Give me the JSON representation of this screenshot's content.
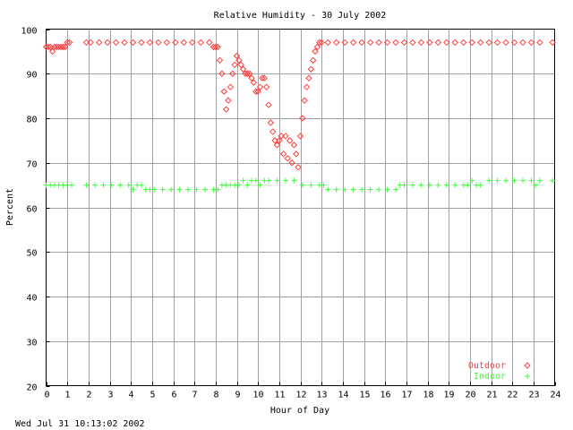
{
  "footer_timestamp": "Wed Jul 31 10:13:02 2002",
  "chart_data": {
    "type": "scatter",
    "title": "Relative Humidity - 30 July 2002",
    "xlabel": "Hour of Day",
    "ylabel": "Percent",
    "xlim": [
      0,
      24
    ],
    "ylim": [
      20,
      100
    ],
    "x_ticks": [
      "0",
      "1",
      "2",
      "3",
      "4",
      "5",
      "6",
      "7",
      "8",
      "9",
      "10",
      "11",
      "12",
      "13",
      "14",
      "15",
      "16",
      "17",
      "18",
      "19",
      "20",
      "21",
      "22",
      "23",
      "24"
    ],
    "y_ticks": [
      "20",
      "30",
      "40",
      "50",
      "60",
      "70",
      "80",
      "90",
      "100"
    ],
    "grid": true,
    "legend_position": "bottom-right",
    "series": [
      {
        "name": "Outdoor",
        "marker": "diamond",
        "color": "#ff4040",
        "x": [
          0.0,
          0.1,
          0.2,
          0.3,
          0.4,
          0.5,
          0.6,
          0.7,
          0.8,
          0.9,
          1.0,
          1.1,
          1.9,
          2.1,
          2.5,
          2.9,
          3.3,
          3.7,
          4.1,
          4.5,
          4.9,
          5.3,
          5.7,
          6.1,
          6.5,
          6.9,
          7.3,
          7.7,
          7.9,
          8.0,
          8.1,
          8.2,
          8.3,
          8.4,
          8.5,
          8.6,
          8.7,
          8.8,
          8.9,
          9.0,
          9.1,
          9.2,
          9.3,
          9.4,
          9.5,
          9.6,
          9.7,
          9.8,
          9.9,
          10.0,
          10.1,
          10.2,
          10.3,
          10.4,
          10.5,
          10.6,
          10.7,
          10.8,
          10.9,
          11.0,
          11.1,
          11.2,
          11.3,
          11.4,
          11.5,
          11.6,
          11.7,
          11.8,
          11.9,
          12.0,
          12.1,
          12.2,
          12.3,
          12.4,
          12.5,
          12.6,
          12.7,
          12.8,
          12.9,
          13.0,
          13.3,
          13.7,
          14.1,
          14.5,
          14.9,
          15.3,
          15.7,
          16.1,
          16.5,
          16.9,
          17.3,
          17.7,
          18.1,
          18.5,
          18.9,
          19.3,
          19.7,
          20.1,
          20.5,
          20.9,
          21.3,
          21.7,
          22.1,
          22.5,
          22.9,
          23.3,
          23.9
        ],
        "y": [
          96,
          96,
          96,
          95,
          96,
          96,
          96,
          96,
          96,
          96,
          97,
          97,
          97,
          97,
          97,
          97,
          97,
          97,
          97,
          97,
          97,
          97,
          97,
          97,
          97,
          97,
          97,
          97,
          96,
          96,
          96,
          93,
          90,
          86,
          82,
          84,
          87,
          90,
          92,
          94,
          93,
          92,
          91,
          90,
          90,
          90,
          89,
          88,
          86,
          86,
          87,
          89,
          89,
          87,
          83,
          79,
          77,
          75,
          74,
          75,
          76,
          72,
          76,
          71,
          75,
          70,
          74,
          72,
          69,
          76,
          80,
          84,
          87,
          89,
          91,
          93,
          95,
          96,
          97,
          97,
          97,
          97,
          97,
          97,
          97,
          97,
          97,
          97,
          97,
          97,
          97,
          97,
          97,
          97,
          97,
          97,
          97,
          97,
          97,
          97,
          97,
          97,
          97,
          97,
          97,
          97,
          97
        ]
      },
      {
        "name": "Indoor",
        "marker": "plus",
        "color": "#40ff40",
        "x": [
          0.0,
          0.2,
          0.4,
          0.6,
          0.8,
          1.0,
          1.2,
          1.9,
          2.3,
          2.7,
          3.1,
          3.5,
          3.9,
          4.1,
          4.3,
          4.5,
          4.7,
          4.9,
          5.1,
          5.5,
          5.9,
          6.3,
          6.7,
          7.1,
          7.5,
          7.9,
          8.1,
          8.3,
          8.5,
          8.7,
          8.9,
          9.1,
          9.3,
          9.5,
          9.7,
          9.9,
          10.1,
          10.3,
          10.5,
          10.9,
          11.3,
          11.7,
          12.1,
          12.5,
          12.9,
          13.1,
          13.3,
          13.7,
          14.1,
          14.5,
          14.9,
          15.3,
          15.7,
          16.1,
          16.5,
          16.7,
          16.9,
          17.3,
          17.7,
          18.1,
          18.5,
          18.9,
          19.3,
          19.7,
          19.9,
          20.1,
          20.3,
          20.5,
          20.9,
          21.3,
          21.7,
          22.1,
          22.5,
          22.9,
          23.1,
          23.3,
          23.9
        ],
        "y": [
          65,
          65,
          65,
          65,
          65,
          65,
          65,
          65,
          65,
          65,
          65,
          65,
          65,
          64,
          65,
          65,
          64,
          64,
          64,
          64,
          64,
          64,
          64,
          64,
          64,
          64,
          64,
          65,
          65,
          65,
          65,
          65,
          66,
          65,
          66,
          66,
          65,
          66,
          66,
          66,
          66,
          66,
          65,
          65,
          65,
          65,
          64,
          64,
          64,
          64,
          64,
          64,
          64,
          64,
          64,
          65,
          65,
          65,
          65,
          65,
          65,
          65,
          65,
          65,
          65,
          66,
          65,
          65,
          66,
          66,
          66,
          66,
          66,
          66,
          65,
          66,
          66
        ]
      }
    ]
  }
}
